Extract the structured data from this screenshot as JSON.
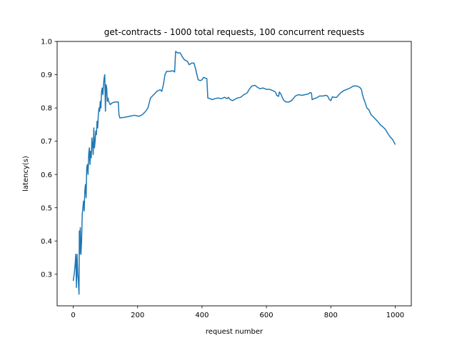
{
  "chart_data": {
    "type": "line",
    "title": "get-contracts - 1000 total requests, 100 concurrent requests",
    "xlabel": "request number",
    "ylabel": "latency(s)",
    "xlim": [
      -50,
      1050
    ],
    "ylim": [
      0.205,
      1.0
    ],
    "xticks": [
      0,
      200,
      400,
      600,
      800,
      1000
    ],
    "yticks": [
      0.3,
      0.4,
      0.5,
      0.6,
      0.7,
      0.8,
      0.9,
      1.0
    ],
    "grid": false,
    "series": [
      {
        "color": "#1f77b4",
        "points": [
          [
            0,
            0.28
          ],
          [
            3,
            0.3
          ],
          [
            6,
            0.33
          ],
          [
            8,
            0.36
          ],
          [
            10,
            0.26
          ],
          [
            12,
            0.36
          ],
          [
            14,
            0.3
          ],
          [
            16,
            0.28
          ],
          [
            18,
            0.24
          ],
          [
            19,
            0.43
          ],
          [
            20,
            0.36
          ],
          [
            22,
            0.44
          ],
          [
            24,
            0.36
          ],
          [
            26,
            0.4
          ],
          [
            28,
            0.48
          ],
          [
            30,
            0.5
          ],
          [
            32,
            0.52
          ],
          [
            34,
            0.49
          ],
          [
            36,
            0.55
          ],
          [
            38,
            0.57
          ],
          [
            40,
            0.53
          ],
          [
            42,
            0.62
          ],
          [
            44,
            0.63
          ],
          [
            46,
            0.6
          ],
          [
            48,
            0.66
          ],
          [
            50,
            0.68
          ],
          [
            52,
            0.63
          ],
          [
            54,
            0.67
          ],
          [
            56,
            0.65
          ],
          [
            58,
            0.71
          ],
          [
            60,
            0.69
          ],
          [
            62,
            0.66
          ],
          [
            64,
            0.74
          ],
          [
            66,
            0.68
          ],
          [
            68,
            0.7
          ],
          [
            70,
            0.73
          ],
          [
            72,
            0.72
          ],
          [
            74,
            0.76
          ],
          [
            76,
            0.74
          ],
          [
            78,
            0.78
          ],
          [
            80,
            0.8
          ],
          [
            82,
            0.79
          ],
          [
            84,
            0.82
          ],
          [
            86,
            0.8
          ],
          [
            88,
            0.85
          ],
          [
            90,
            0.86
          ],
          [
            92,
            0.84
          ],
          [
            94,
            0.87
          ],
          [
            96,
            0.89
          ],
          [
            98,
            0.9
          ],
          [
            100,
            0.79
          ],
          [
            102,
            0.87
          ],
          [
            104,
            0.86
          ],
          [
            106,
            0.82
          ],
          [
            108,
            0.83
          ],
          [
            110,
            0.82
          ],
          [
            115,
            0.81
          ],
          [
            120,
            0.815
          ],
          [
            130,
            0.818
          ],
          [
            140,
            0.818
          ],
          [
            142,
            0.78
          ],
          [
            145,
            0.77
          ],
          [
            160,
            0.772
          ],
          [
            175,
            0.775
          ],
          [
            190,
            0.778
          ],
          [
            200,
            0.776
          ],
          [
            205,
            0.775
          ],
          [
            215,
            0.78
          ],
          [
            225,
            0.79
          ],
          [
            232,
            0.8
          ],
          [
            240,
            0.83
          ],
          [
            250,
            0.84
          ],
          [
            260,
            0.85
          ],
          [
            270,
            0.855
          ],
          [
            275,
            0.85
          ],
          [
            280,
            0.87
          ],
          [
            285,
            0.9
          ],
          [
            290,
            0.91
          ],
          [
            300,
            0.91
          ],
          [
            310,
            0.912
          ],
          [
            315,
            0.908
          ],
          [
            318,
            0.97
          ],
          [
            325,
            0.965
          ],
          [
            332,
            0.966
          ],
          [
            338,
            0.955
          ],
          [
            345,
            0.945
          ],
          [
            355,
            0.94
          ],
          [
            360,
            0.93
          ],
          [
            368,
            0.935
          ],
          [
            375,
            0.935
          ],
          [
            380,
            0.918
          ],
          [
            383,
            0.905
          ],
          [
            388,
            0.885
          ],
          [
            395,
            0.882
          ],
          [
            400,
            0.885
          ],
          [
            405,
            0.892
          ],
          [
            415,
            0.888
          ],
          [
            418,
            0.83
          ],
          [
            425,
            0.828
          ],
          [
            432,
            0.825
          ],
          [
            440,
            0.828
          ],
          [
            450,
            0.83
          ],
          [
            460,
            0.828
          ],
          [
            470,
            0.832
          ],
          [
            478,
            0.828
          ],
          [
            482,
            0.832
          ],
          [
            488,
            0.825
          ],
          [
            495,
            0.822
          ],
          [
            500,
            0.825
          ],
          [
            510,
            0.83
          ],
          [
            520,
            0.832
          ],
          [
            530,
            0.84
          ],
          [
            540,
            0.845
          ],
          [
            548,
            0.858
          ],
          [
            555,
            0.866
          ],
          [
            565,
            0.868
          ],
          [
            572,
            0.862
          ],
          [
            580,
            0.858
          ],
          [
            590,
            0.86
          ],
          [
            600,
            0.856
          ],
          [
            610,
            0.856
          ],
          [
            620,
            0.852
          ],
          [
            628,
            0.848
          ],
          [
            632,
            0.838
          ],
          [
            638,
            0.835
          ],
          [
            640,
            0.848
          ],
          [
            645,
            0.842
          ],
          [
            650,
            0.83
          ],
          [
            655,
            0.822
          ],
          [
            662,
            0.818
          ],
          [
            670,
            0.818
          ],
          [
            678,
            0.822
          ],
          [
            685,
            0.83
          ],
          [
            690,
            0.836
          ],
          [
            700,
            0.84
          ],
          [
            710,
            0.838
          ],
          [
            720,
            0.84
          ],
          [
            730,
            0.842
          ],
          [
            735,
            0.846
          ],
          [
            740,
            0.845
          ],
          [
            742,
            0.825
          ],
          [
            748,
            0.828
          ],
          [
            755,
            0.83
          ],
          [
            765,
            0.836
          ],
          [
            775,
            0.836
          ],
          [
            785,
            0.838
          ],
          [
            790,
            0.836
          ],
          [
            795,
            0.826
          ],
          [
            800,
            0.822
          ],
          [
            805,
            0.834
          ],
          [
            810,
            0.832
          ],
          [
            818,
            0.832
          ],
          [
            825,
            0.84
          ],
          [
            830,
            0.845
          ],
          [
            840,
            0.852
          ],
          [
            850,
            0.856
          ],
          [
            860,
            0.86
          ],
          [
            870,
            0.866
          ],
          [
            880,
            0.866
          ],
          [
            890,
            0.862
          ],
          [
            895,
            0.856
          ],
          [
            898,
            0.842
          ],
          [
            902,
            0.828
          ],
          [
            906,
            0.818
          ],
          [
            912,
            0.8
          ],
          [
            918,
            0.795
          ],
          [
            925,
            0.78
          ],
          [
            935,
            0.77
          ],
          [
            945,
            0.76
          ],
          [
            955,
            0.748
          ],
          [
            962,
            0.743
          ],
          [
            970,
            0.735
          ],
          [
            978,
            0.722
          ],
          [
            985,
            0.712
          ],
          [
            992,
            0.705
          ],
          [
            996,
            0.698
          ],
          [
            1000,
            0.69
          ]
        ]
      }
    ]
  }
}
